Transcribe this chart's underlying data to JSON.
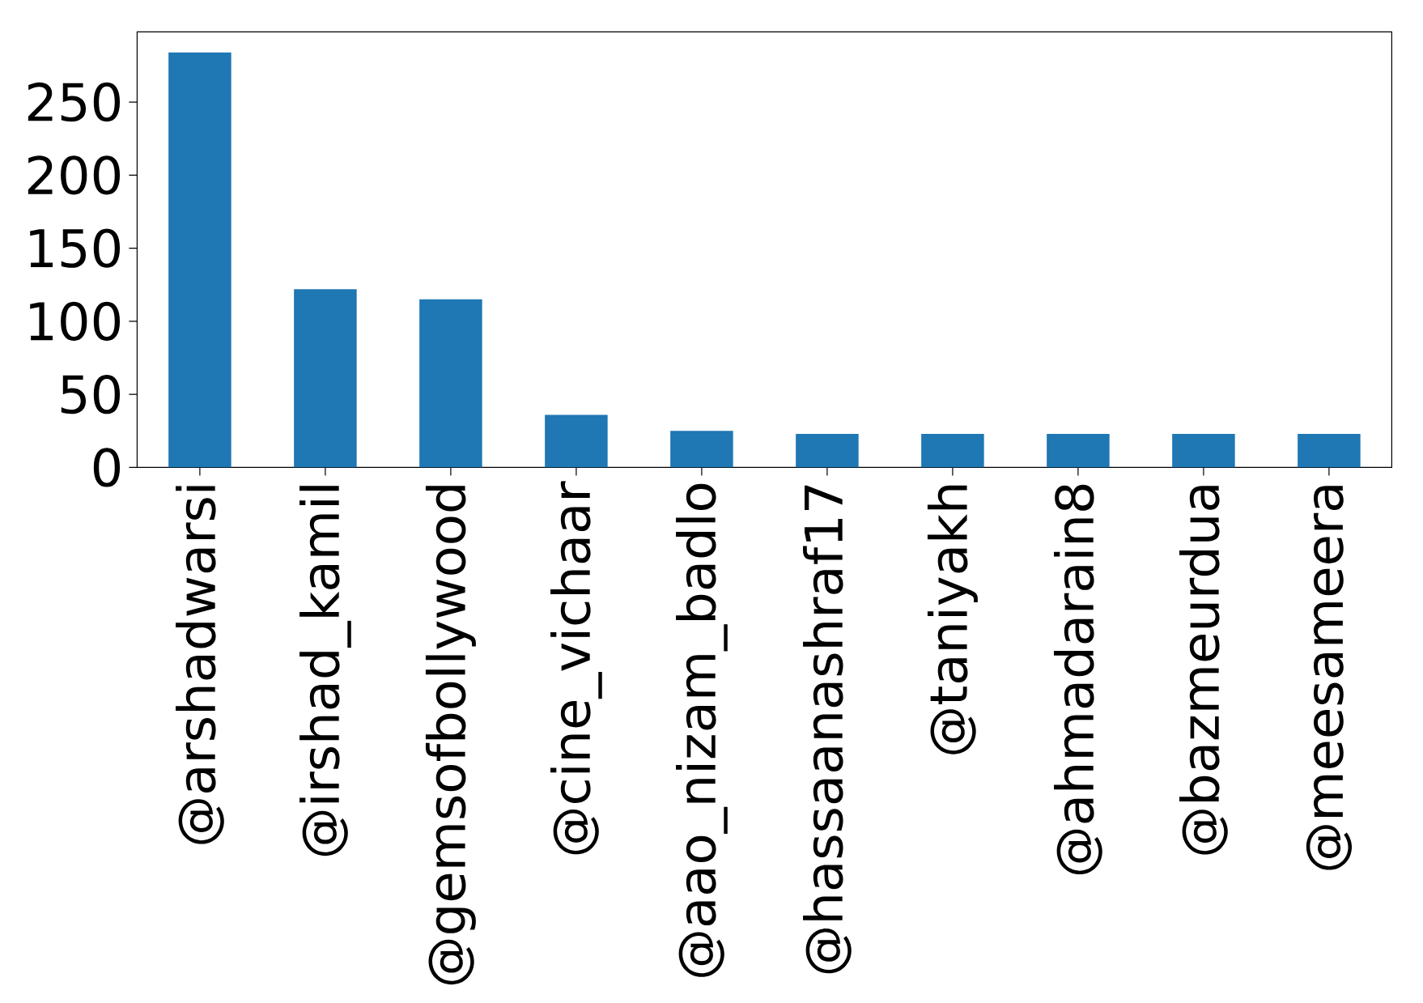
{
  "chart_data": {
    "type": "bar",
    "categories": [
      "@arshadwarsi",
      "@irshad_kamil",
      "@gemsofbollywood",
      "@cine_vichaar",
      "@aao_nizam_badlo",
      "@hassaanashraf17",
      "@taniyakh",
      "@ahmadarain8",
      "@bazmeurdua",
      "@meesameera"
    ],
    "values": [
      284,
      122,
      115,
      36,
      25,
      23,
      23,
      23,
      23,
      23
    ],
    "color": "#1f77b4",
    "ylim": [
      0,
      298
    ],
    "yticks": [
      0,
      50,
      100,
      150,
      200,
      250
    ],
    "grid": false
  }
}
